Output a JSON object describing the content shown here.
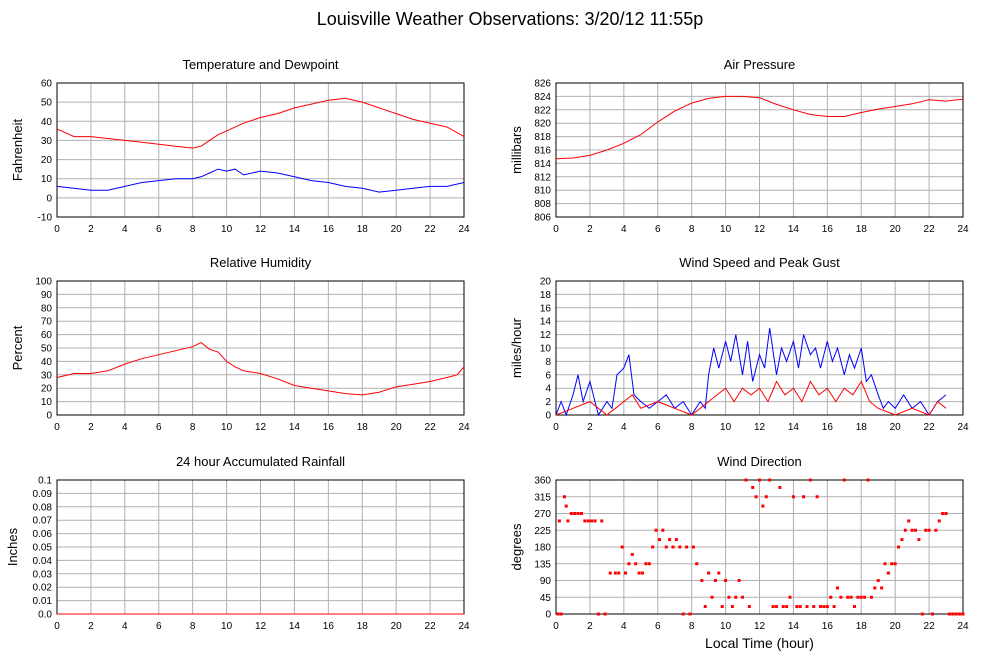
{
  "page_title": "Louisville Weather Observations: 3/20/12 11:55p",
  "colors": {
    "red": "#ff0000",
    "blue": "#0000ff",
    "grid": "#b0b0b0"
  },
  "chart_data": [
    {
      "id": "temperature",
      "type": "line",
      "title": "Temperature and Dewpoint",
      "ylabel": "Fahrenheit",
      "xlabel": "",
      "xlim": [
        0,
        24
      ],
      "ylim": [
        -10,
        60
      ],
      "yticks": [
        -10,
        0,
        10,
        20,
        30,
        40,
        50,
        60
      ],
      "xticks": [
        0,
        2,
        4,
        6,
        8,
        10,
        12,
        14,
        16,
        18,
        20,
        22,
        24
      ],
      "grid": true,
      "series": [
        {
          "color": "#ff0000",
          "x": [
            0,
            1,
            2,
            3,
            4,
            5,
            6,
            7,
            8,
            8.5,
            9,
            9.5,
            10,
            11,
            12,
            13,
            14,
            15,
            16,
            17,
            18,
            19,
            20,
            21,
            22,
            23,
            24
          ],
          "values": [
            36,
            32,
            32,
            31,
            30,
            29,
            28,
            27,
            26,
            27,
            30,
            33,
            35,
            39,
            42,
            44,
            47,
            49,
            51,
            52,
            50,
            47,
            44,
            41,
            39,
            37,
            32
          ]
        },
        {
          "color": "#0000ff",
          "x": [
            0,
            1,
            2,
            3,
            4,
            5,
            6,
            7,
            8,
            8.5,
            9,
            9.5,
            10,
            10.5,
            11,
            12,
            13,
            14,
            15,
            16,
            17,
            18,
            19,
            20,
            21,
            22,
            23,
            24
          ],
          "values": [
            6,
            5,
            4,
            4,
            6,
            8,
            9,
            10,
            10,
            11,
            13,
            15,
            14,
            15,
            12,
            14,
            13,
            11,
            9,
            8,
            6,
            5,
            3,
            4,
            5,
            6,
            6,
            8
          ]
        }
      ]
    },
    {
      "id": "pressure",
      "type": "line",
      "title": "Air Pressure",
      "ylabel": "millibars",
      "xlabel": "",
      "xlim": [
        0,
        24
      ],
      "ylim": [
        806,
        826
      ],
      "yticks": [
        806,
        808,
        810,
        812,
        814,
        816,
        818,
        820,
        822,
        824,
        826
      ],
      "xticks": [
        0,
        2,
        4,
        6,
        8,
        10,
        12,
        14,
        16,
        18,
        20,
        22,
        24
      ],
      "grid": true,
      "series": [
        {
          "color": "#ff0000",
          "x": [
            0,
            1,
            2,
            3,
            4,
            5,
            6,
            7,
            8,
            9,
            10,
            11,
            12,
            13,
            14,
            15,
            16,
            17,
            18,
            19,
            20,
            21,
            22,
            23,
            24
          ],
          "values": [
            814.7,
            814.8,
            815.2,
            816.0,
            817.0,
            818.3,
            820.2,
            821.8,
            823.0,
            823.7,
            824.0,
            824.0,
            823.8,
            822.8,
            822.0,
            821.3,
            821.0,
            821.0,
            821.6,
            822.1,
            822.5,
            822.9,
            823.5,
            823.3,
            823.6
          ]
        }
      ]
    },
    {
      "id": "humidity",
      "type": "line",
      "title": "Relative Humidity",
      "ylabel": "Percent",
      "xlabel": "",
      "xlim": [
        0,
        24
      ],
      "ylim": [
        0,
        100
      ],
      "yticks": [
        0,
        10,
        20,
        30,
        40,
        50,
        60,
        70,
        80,
        90,
        100
      ],
      "xticks": [
        0,
        2,
        4,
        6,
        8,
        10,
        12,
        14,
        16,
        18,
        20,
        22,
        24
      ],
      "grid": true,
      "series": [
        {
          "color": "#ff0000",
          "x": [
            0,
            1,
            2,
            3,
            4,
            5,
            6,
            7,
            8,
            8.5,
            9,
            9.5,
            10,
            10.5,
            11,
            12,
            13,
            14,
            15,
            16,
            17,
            18,
            19,
            20,
            21,
            22,
            23,
            23.6,
            24
          ],
          "values": [
            28,
            31,
            31,
            33,
            38,
            42,
            45,
            48,
            51,
            54,
            49,
            47,
            40,
            36,
            33,
            31,
            27,
            22,
            20,
            18,
            16,
            15,
            17,
            21,
            23,
            25,
            28,
            30,
            36
          ]
        }
      ]
    },
    {
      "id": "wind",
      "type": "line",
      "title": "Wind Speed and Peak Gust",
      "ylabel": "miles/hour",
      "xlabel": "",
      "xlim": [
        0,
        24
      ],
      "ylim": [
        0,
        20
      ],
      "yticks": [
        0,
        2,
        4,
        6,
        8,
        10,
        12,
        14,
        16,
        18,
        20
      ],
      "xticks": [
        0,
        2,
        4,
        6,
        8,
        10,
        12,
        14,
        16,
        18,
        20,
        22,
        24
      ],
      "grid": true,
      "series": [
        {
          "color": "#0000ff",
          "x": [
            0,
            0.3,
            0.6,
            1.0,
            1.3,
            1.6,
            2.0,
            2.5,
            3.0,
            3.3,
            3.6,
            4.0,
            4.3,
            4.6,
            5.0,
            5.5,
            6.0,
            6.5,
            7.0,
            7.5,
            8.0,
            8.5,
            8.8,
            9.0,
            9.3,
            9.6,
            10.0,
            10.3,
            10.6,
            11.0,
            11.3,
            11.6,
            12.0,
            12.3,
            12.6,
            13.0,
            13.3,
            13.6,
            14.0,
            14.3,
            14.6,
            15.0,
            15.3,
            15.6,
            16.0,
            16.3,
            16.6,
            17.0,
            17.3,
            17.6,
            18.0,
            18.3,
            18.6,
            19.0,
            19.3,
            19.6,
            20.0,
            20.5,
            21.0,
            21.5,
            22.0,
            22.5,
            23.0
          ],
          "values": [
            0,
            2,
            0,
            3,
            6,
            2,
            5,
            0,
            2,
            1,
            6,
            7,
            9,
            3,
            2,
            1,
            2,
            3,
            1,
            2,
            0,
            2,
            1,
            6,
            10,
            7,
            11,
            8,
            12,
            6,
            11,
            5,
            9,
            7,
            13,
            6,
            10,
            8,
            11,
            7,
            12,
            9,
            10,
            7,
            11,
            8,
            10,
            6,
            9,
            7,
            10,
            5,
            6,
            3,
            1,
            2,
            1,
            3,
            1,
            2,
            0,
            2,
            3
          ]
        },
        {
          "color": "#ff0000",
          "x": [
            0,
            1,
            2,
            3,
            3.5,
            4,
            4.5,
            5,
            6,
            7,
            8,
            9,
            9.5,
            10,
            10.5,
            11,
            11.5,
            12,
            12.5,
            13,
            13.5,
            14,
            14.5,
            15,
            15.5,
            16,
            16.5,
            17,
            17.5,
            18,
            18.5,
            19,
            20,
            21,
            22,
            22.5,
            23
          ],
          "values": [
            0,
            1,
            2,
            0,
            1,
            2,
            3,
            1,
            2,
            1,
            0,
            2,
            3,
            4,
            2,
            4,
            3,
            4,
            2,
            5,
            3,
            4,
            2,
            5,
            3,
            4,
            2,
            4,
            3,
            5,
            2,
            1,
            0,
            1,
            0,
            2,
            1
          ]
        }
      ]
    },
    {
      "id": "rainfall",
      "type": "line",
      "title": "24 hour Accumulated Rainfall",
      "ylabel": "Inches",
      "xlabel": "",
      "xlim": [
        0,
        24
      ],
      "ylim": [
        0,
        0.1
      ],
      "yticks": [
        0.0,
        0.01,
        0.02,
        0.03,
        0.04,
        0.05,
        0.06,
        0.07,
        0.08,
        0.09,
        0.1
      ],
      "ytick_labels": [
        "0.0",
        "0.01",
        "0.02",
        "0.03",
        "0.04",
        "0.05",
        "0.06",
        "0.07",
        "0.08",
        "0.09",
        "0.1"
      ],
      "xticks": [
        0,
        2,
        4,
        6,
        8,
        10,
        12,
        14,
        16,
        18,
        20,
        22,
        24
      ],
      "grid": true,
      "series": [
        {
          "color": "#ff0000",
          "x": [
            0,
            24
          ],
          "values": [
            0,
            0
          ]
        }
      ]
    },
    {
      "id": "direction",
      "type": "scatter",
      "title": "Wind Direction",
      "ylabel": "degrees",
      "xlabel": "Local Time (hour)",
      "xlim": [
        0,
        24
      ],
      "ylim": [
        0,
        360
      ],
      "yticks": [
        0,
        45,
        90,
        135,
        180,
        225,
        270,
        315,
        360
      ],
      "xticks": [
        0,
        2,
        4,
        6,
        8,
        10,
        12,
        14,
        16,
        18,
        20,
        22,
        24
      ],
      "grid": true,
      "series": [
        {
          "color": "#ff0000",
          "x": [
            0.1,
            0.2,
            0.3,
            0.5,
            0.6,
            0.7,
            0.9,
            1.1,
            1.3,
            1.5,
            1.7,
            1.9,
            2.1,
            2.3,
            2.5,
            2.7,
            2.9,
            3.2,
            3.5,
            3.7,
            3.9,
            4.1,
            4.3,
            4.5,
            4.7,
            4.9,
            5.1,
            5.3,
            5.5,
            5.7,
            5.9,
            6.1,
            6.3,
            6.5,
            6.7,
            6.9,
            7.1,
            7.3,
            7.5,
            7.7,
            7.9,
            8.1,
            8.3,
            8.6,
            8.8,
            9.0,
            9.2,
            9.4,
            9.6,
            9.8,
            10.0,
            10.2,
            10.4,
            10.6,
            10.8,
            11.0,
            11.2,
            11.4,
            11.6,
            11.8,
            12.0,
            12.2,
            12.4,
            12.6,
            12.8,
            13.0,
            13.2,
            13.4,
            13.6,
            13.8,
            14.0,
            14.2,
            14.4,
            14.6,
            14.8,
            15.0,
            15.2,
            15.4,
            15.6,
            15.8,
            16.0,
            16.2,
            16.4,
            16.6,
            16.8,
            17.0,
            17.2,
            17.4,
            17.6,
            17.8,
            18.0,
            18.2,
            18.4,
            18.6,
            18.8,
            19.0,
            19.2,
            19.4,
            19.6,
            19.8,
            20.0,
            20.2,
            20.4,
            20.6,
            20.8,
            21.0,
            21.2,
            21.4,
            21.6,
            21.8,
            22.0,
            22.2,
            22.4,
            22.6,
            22.8,
            23.0,
            23.2,
            23.4,
            23.6,
            23.8,
            24.0
          ],
          "values": [
            0,
            250,
            0,
            315,
            290,
            250,
            270,
            270,
            270,
            270,
            250,
            250,
            250,
            250,
            0,
            250,
            0,
            110,
            110,
            110,
            180,
            110,
            135,
            160,
            135,
            110,
            110,
            135,
            135,
            180,
            225,
            200,
            225,
            180,
            200,
            180,
            200,
            180,
            0,
            180,
            0,
            180,
            135,
            90,
            20,
            110,
            45,
            90,
            110,
            20,
            90,
            45,
            20,
            45,
            90,
            45,
            360,
            20,
            340,
            315,
            360,
            290,
            315,
            360,
            20,
            20,
            340,
            20,
            20,
            45,
            315,
            20,
            20,
            315,
            20,
            360,
            20,
            315,
            20,
            20,
            20,
            45,
            20,
            70,
            45,
            360,
            45,
            45,
            20,
            45,
            45,
            45,
            360,
            45,
            70,
            90,
            70,
            135,
            110,
            135,
            135,
            180,
            200,
            225,
            250,
            225,
            225,
            200,
            0,
            225,
            225,
            0,
            225,
            250,
            270,
            270,
            0,
            0,
            0,
            0,
            0
          ]
        }
      ]
    }
  ]
}
